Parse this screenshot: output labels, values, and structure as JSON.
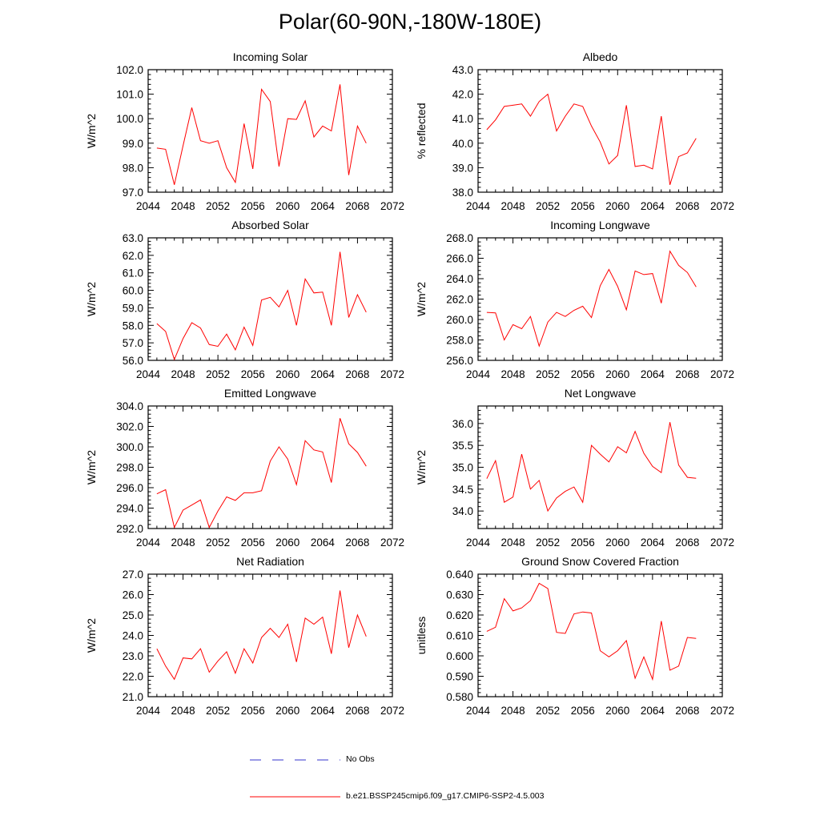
{
  "title": "Polar(60-90N,-180W-180E)",
  "legend": {
    "obs_label": "No Obs",
    "model_label": "b.e21.BSSP245cmip6.f09_g17.CMIP6-SSP2-4.5.003",
    "obs_color": "#3333cc",
    "model_color": "#ff0000"
  },
  "chart_data": [
    {
      "type": "line",
      "title": "Incoming Solar",
      "ylabel": "W/m^2",
      "xlim": [
        2044,
        2072
      ],
      "ylim": [
        97.0,
        102.0
      ],
      "xticks": [
        2044,
        2048,
        2052,
        2056,
        2060,
        2064,
        2068,
        2072
      ],
      "yticks": [
        97.0,
        98.0,
        99.0,
        100.0,
        101.0,
        102.0
      ],
      "ydecimals": 1,
      "x": [
        2045,
        2046,
        2047,
        2048,
        2049,
        2050,
        2051,
        2052,
        2053,
        2054,
        2055,
        2056,
        2057,
        2058,
        2059,
        2060,
        2061,
        2062,
        2063,
        2064,
        2065,
        2066,
        2067,
        2068,
        2069
      ],
      "values": [
        98.8,
        98.75,
        97.3,
        98.9,
        100.45,
        99.1,
        99.0,
        99.1,
        98.0,
        97.4,
        99.8,
        97.95,
        101.2,
        100.7,
        98.05,
        100.0,
        99.97,
        100.73,
        99.25,
        99.7,
        99.5,
        101.4,
        97.7,
        99.7,
        99.0
      ]
    },
    {
      "type": "line",
      "title": "Albedo",
      "ylabel": "% reflected",
      "xlim": [
        2044,
        2072
      ],
      "ylim": [
        38.0,
        43.0
      ],
      "xticks": [
        2044,
        2048,
        2052,
        2056,
        2060,
        2064,
        2068,
        2072
      ],
      "yticks": [
        38.0,
        39.0,
        40.0,
        41.0,
        42.0,
        43.0
      ],
      "ydecimals": 1,
      "x": [
        2045,
        2046,
        2047,
        2048,
        2049,
        2050,
        2051,
        2052,
        2053,
        2054,
        2055,
        2056,
        2057,
        2058,
        2059,
        2060,
        2061,
        2062,
        2063,
        2064,
        2065,
        2066,
        2067,
        2068,
        2069
      ],
      "values": [
        40.55,
        40.95,
        41.5,
        41.55,
        41.6,
        41.1,
        41.7,
        42.0,
        40.5,
        41.1,
        41.6,
        41.5,
        40.7,
        40.05,
        39.15,
        39.5,
        41.55,
        39.05,
        39.1,
        38.95,
        41.1,
        38.3,
        39.45,
        39.6,
        40.2
      ]
    },
    {
      "type": "line",
      "title": "Absorbed Solar",
      "ylabel": "W/m^2",
      "xlim": [
        2044,
        2072
      ],
      "ylim": [
        56.0,
        63.0
      ],
      "xticks": [
        2044,
        2048,
        2052,
        2056,
        2060,
        2064,
        2068,
        2072
      ],
      "yticks": [
        56.0,
        57.0,
        58.0,
        59.0,
        60.0,
        61.0,
        62.0,
        63.0
      ],
      "ydecimals": 1,
      "x": [
        2045,
        2046,
        2047,
        2048,
        2049,
        2050,
        2051,
        2052,
        2053,
        2054,
        2055,
        2056,
        2057,
        2058,
        2059,
        2060,
        2061,
        2062,
        2063,
        2064,
        2065,
        2066,
        2067,
        2068,
        2069
      ],
      "values": [
        58.1,
        57.65,
        56.05,
        57.25,
        58.15,
        57.85,
        56.9,
        56.8,
        57.5,
        56.6,
        57.9,
        56.85,
        59.45,
        59.6,
        59.05,
        60.0,
        58.0,
        60.65,
        59.85,
        59.9,
        58.0,
        62.2,
        58.45,
        59.75,
        58.75
      ]
    },
    {
      "type": "line",
      "title": "Incoming Longwave",
      "ylabel": "W/m^2",
      "xlim": [
        2044,
        2072
      ],
      "ylim": [
        256.0,
        268.0
      ],
      "xticks": [
        2044,
        2048,
        2052,
        2056,
        2060,
        2064,
        2068,
        2072
      ],
      "yticks": [
        256.0,
        258.0,
        260.0,
        262.0,
        264.0,
        266.0,
        268.0
      ],
      "ydecimals": 1,
      "x": [
        2045,
        2046,
        2047,
        2048,
        2049,
        2050,
        2051,
        2052,
        2053,
        2054,
        2055,
        2056,
        2057,
        2058,
        2059,
        2060,
        2061,
        2062,
        2063,
        2064,
        2065,
        2066,
        2067,
        2068,
        2069
      ],
      "values": [
        260.7,
        260.65,
        258.0,
        259.5,
        259.1,
        260.3,
        257.4,
        259.75,
        260.7,
        260.3,
        260.9,
        261.3,
        260.2,
        263.3,
        264.9,
        263.25,
        260.95,
        264.75,
        264.4,
        264.5,
        261.6,
        266.7,
        265.3,
        264.6,
        263.2
      ]
    },
    {
      "type": "line",
      "title": "Emitted Longwave",
      "ylabel": "W/m^2",
      "xlim": [
        2044,
        2072
      ],
      "ylim": [
        292.0,
        304.0
      ],
      "xticks": [
        2044,
        2048,
        2052,
        2056,
        2060,
        2064,
        2068,
        2072
      ],
      "yticks": [
        292.0,
        294.0,
        296.0,
        298.0,
        300.0,
        302.0,
        304.0
      ],
      "ydecimals": 1,
      "x": [
        2045,
        2046,
        2047,
        2048,
        2049,
        2050,
        2051,
        2052,
        2053,
        2054,
        2055,
        2056,
        2057,
        2058,
        2059,
        2060,
        2061,
        2062,
        2063,
        2064,
        2065,
        2066,
        2067,
        2068,
        2069
      ],
      "values": [
        295.4,
        295.8,
        292.1,
        293.8,
        294.3,
        294.8,
        292.1,
        293.7,
        295.1,
        294.75,
        295.5,
        295.5,
        295.7,
        298.6,
        300.0,
        298.8,
        296.3,
        300.6,
        299.7,
        299.5,
        296.5,
        302.8,
        300.3,
        299.45,
        298.1
      ]
    },
    {
      "type": "line",
      "title": "Net Longwave",
      "ylabel": "W/m^2",
      "xlim": [
        2044,
        2072
      ],
      "ylim": [
        33.6,
        36.4
      ],
      "xticks": [
        2044,
        2048,
        2052,
        2056,
        2060,
        2064,
        2068,
        2072
      ],
      "yticks": [
        34.0,
        34.5,
        35.0,
        35.5,
        36.0
      ],
      "ydecimals": 1,
      "x": [
        2045,
        2046,
        2047,
        2048,
        2049,
        2050,
        2051,
        2052,
        2053,
        2054,
        2055,
        2056,
        2057,
        2058,
        2059,
        2060,
        2061,
        2062,
        2063,
        2064,
        2065,
        2066,
        2067,
        2068,
        2069
      ],
      "values": [
        34.74,
        35.15,
        34.2,
        34.32,
        35.3,
        34.5,
        34.7,
        34.0,
        34.3,
        34.45,
        34.55,
        34.2,
        35.5,
        35.3,
        35.12,
        35.47,
        35.33,
        35.82,
        35.32,
        35.02,
        34.88,
        36.03,
        35.05,
        34.77,
        34.75
      ]
    },
    {
      "type": "line",
      "title": "Net Radiation",
      "ylabel": "W/m^2",
      "xlim": [
        2044,
        2072
      ],
      "ylim": [
        21.0,
        27.0
      ],
      "xticks": [
        2044,
        2048,
        2052,
        2056,
        2060,
        2064,
        2068,
        2072
      ],
      "yticks": [
        21.0,
        22.0,
        23.0,
        24.0,
        25.0,
        26.0,
        27.0
      ],
      "ydecimals": 1,
      "x": [
        2045,
        2046,
        2047,
        2048,
        2049,
        2050,
        2051,
        2052,
        2053,
        2054,
        2055,
        2056,
        2057,
        2058,
        2059,
        2060,
        2061,
        2062,
        2063,
        2064,
        2065,
        2066,
        2067,
        2068,
        2069
      ],
      "values": [
        23.35,
        22.5,
        21.85,
        22.9,
        22.85,
        23.35,
        22.2,
        22.75,
        23.2,
        22.15,
        23.35,
        22.65,
        23.9,
        24.35,
        23.9,
        24.55,
        22.7,
        24.85,
        24.55,
        24.9,
        23.1,
        26.2,
        23.4,
        25.0,
        23.95
      ]
    },
    {
      "type": "line",
      "title": "Ground Snow Covered Fraction",
      "ylabel": "unitless",
      "xlim": [
        2044,
        2072
      ],
      "ylim": [
        0.58,
        0.64
      ],
      "xticks": [
        2044,
        2048,
        2052,
        2056,
        2060,
        2064,
        2068,
        2072
      ],
      "yticks": [
        0.58,
        0.59,
        0.6,
        0.61,
        0.62,
        0.63,
        0.64
      ],
      "ydecimals": 3,
      "x": [
        2045,
        2046,
        2047,
        2048,
        2049,
        2050,
        2051,
        2052,
        2053,
        2054,
        2055,
        2056,
        2057,
        2058,
        2059,
        2060,
        2061,
        2062,
        2063,
        2064,
        2065,
        2066,
        2067,
        2068,
        2069
      ],
      "values": [
        0.612,
        0.614,
        0.628,
        0.622,
        0.6235,
        0.627,
        0.6355,
        0.633,
        0.6115,
        0.611,
        0.6205,
        0.6215,
        0.621,
        0.6025,
        0.5995,
        0.6025,
        0.6075,
        0.589,
        0.5995,
        0.5885,
        0.617,
        0.593,
        0.595,
        0.609,
        0.6085
      ]
    }
  ]
}
